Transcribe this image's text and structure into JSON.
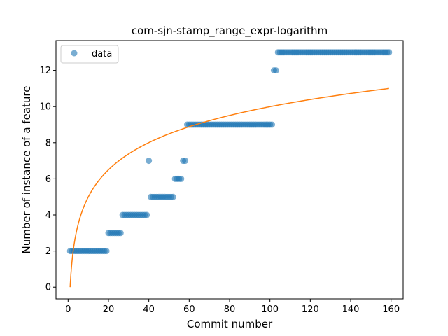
{
  "chart_data": {
    "type": "scatter",
    "title": "com-sjn-stamp_range_expr-logarithm",
    "xlabel": "Commit number",
    "ylabel": "Number of instance of a feature",
    "xlim": [
      -6,
      166
    ],
    "ylim": [
      -0.65,
      13.65
    ],
    "xticks": [
      0,
      20,
      40,
      60,
      80,
      100,
      120,
      140,
      160
    ],
    "yticks": [
      0,
      2,
      4,
      6,
      8,
      10,
      12
    ],
    "grid": false,
    "legend_position": "top-left",
    "series": [
      {
        "name": "data",
        "kind": "points",
        "color": "#1f77b4",
        "segments": [
          {
            "x_start": 1,
            "x_end": 19,
            "y": 2
          },
          {
            "x_start": 20,
            "x_end": 26,
            "y": 3
          },
          {
            "x_start": 27,
            "x_end": 39,
            "y": 4
          },
          {
            "x_start": 40,
            "x_end": 40,
            "y": 7
          },
          {
            "x_start": 41,
            "x_end": 52,
            "y": 5
          },
          {
            "x_start": 53,
            "x_end": 56,
            "y": 6
          },
          {
            "x_start": 57,
            "x_end": 58,
            "y": 7
          },
          {
            "x_start": 59,
            "x_end": 101,
            "y": 9
          },
          {
            "x_start": 102,
            "x_end": 103,
            "y": 12
          },
          {
            "x_start": 104,
            "x_end": 159,
            "y": 13
          }
        ]
      },
      {
        "name": "",
        "kind": "line",
        "color": "#ff7f0e",
        "function": "y = a * ln(x)",
        "a": 2.17,
        "x_range": [
          1,
          159
        ]
      }
    ]
  }
}
